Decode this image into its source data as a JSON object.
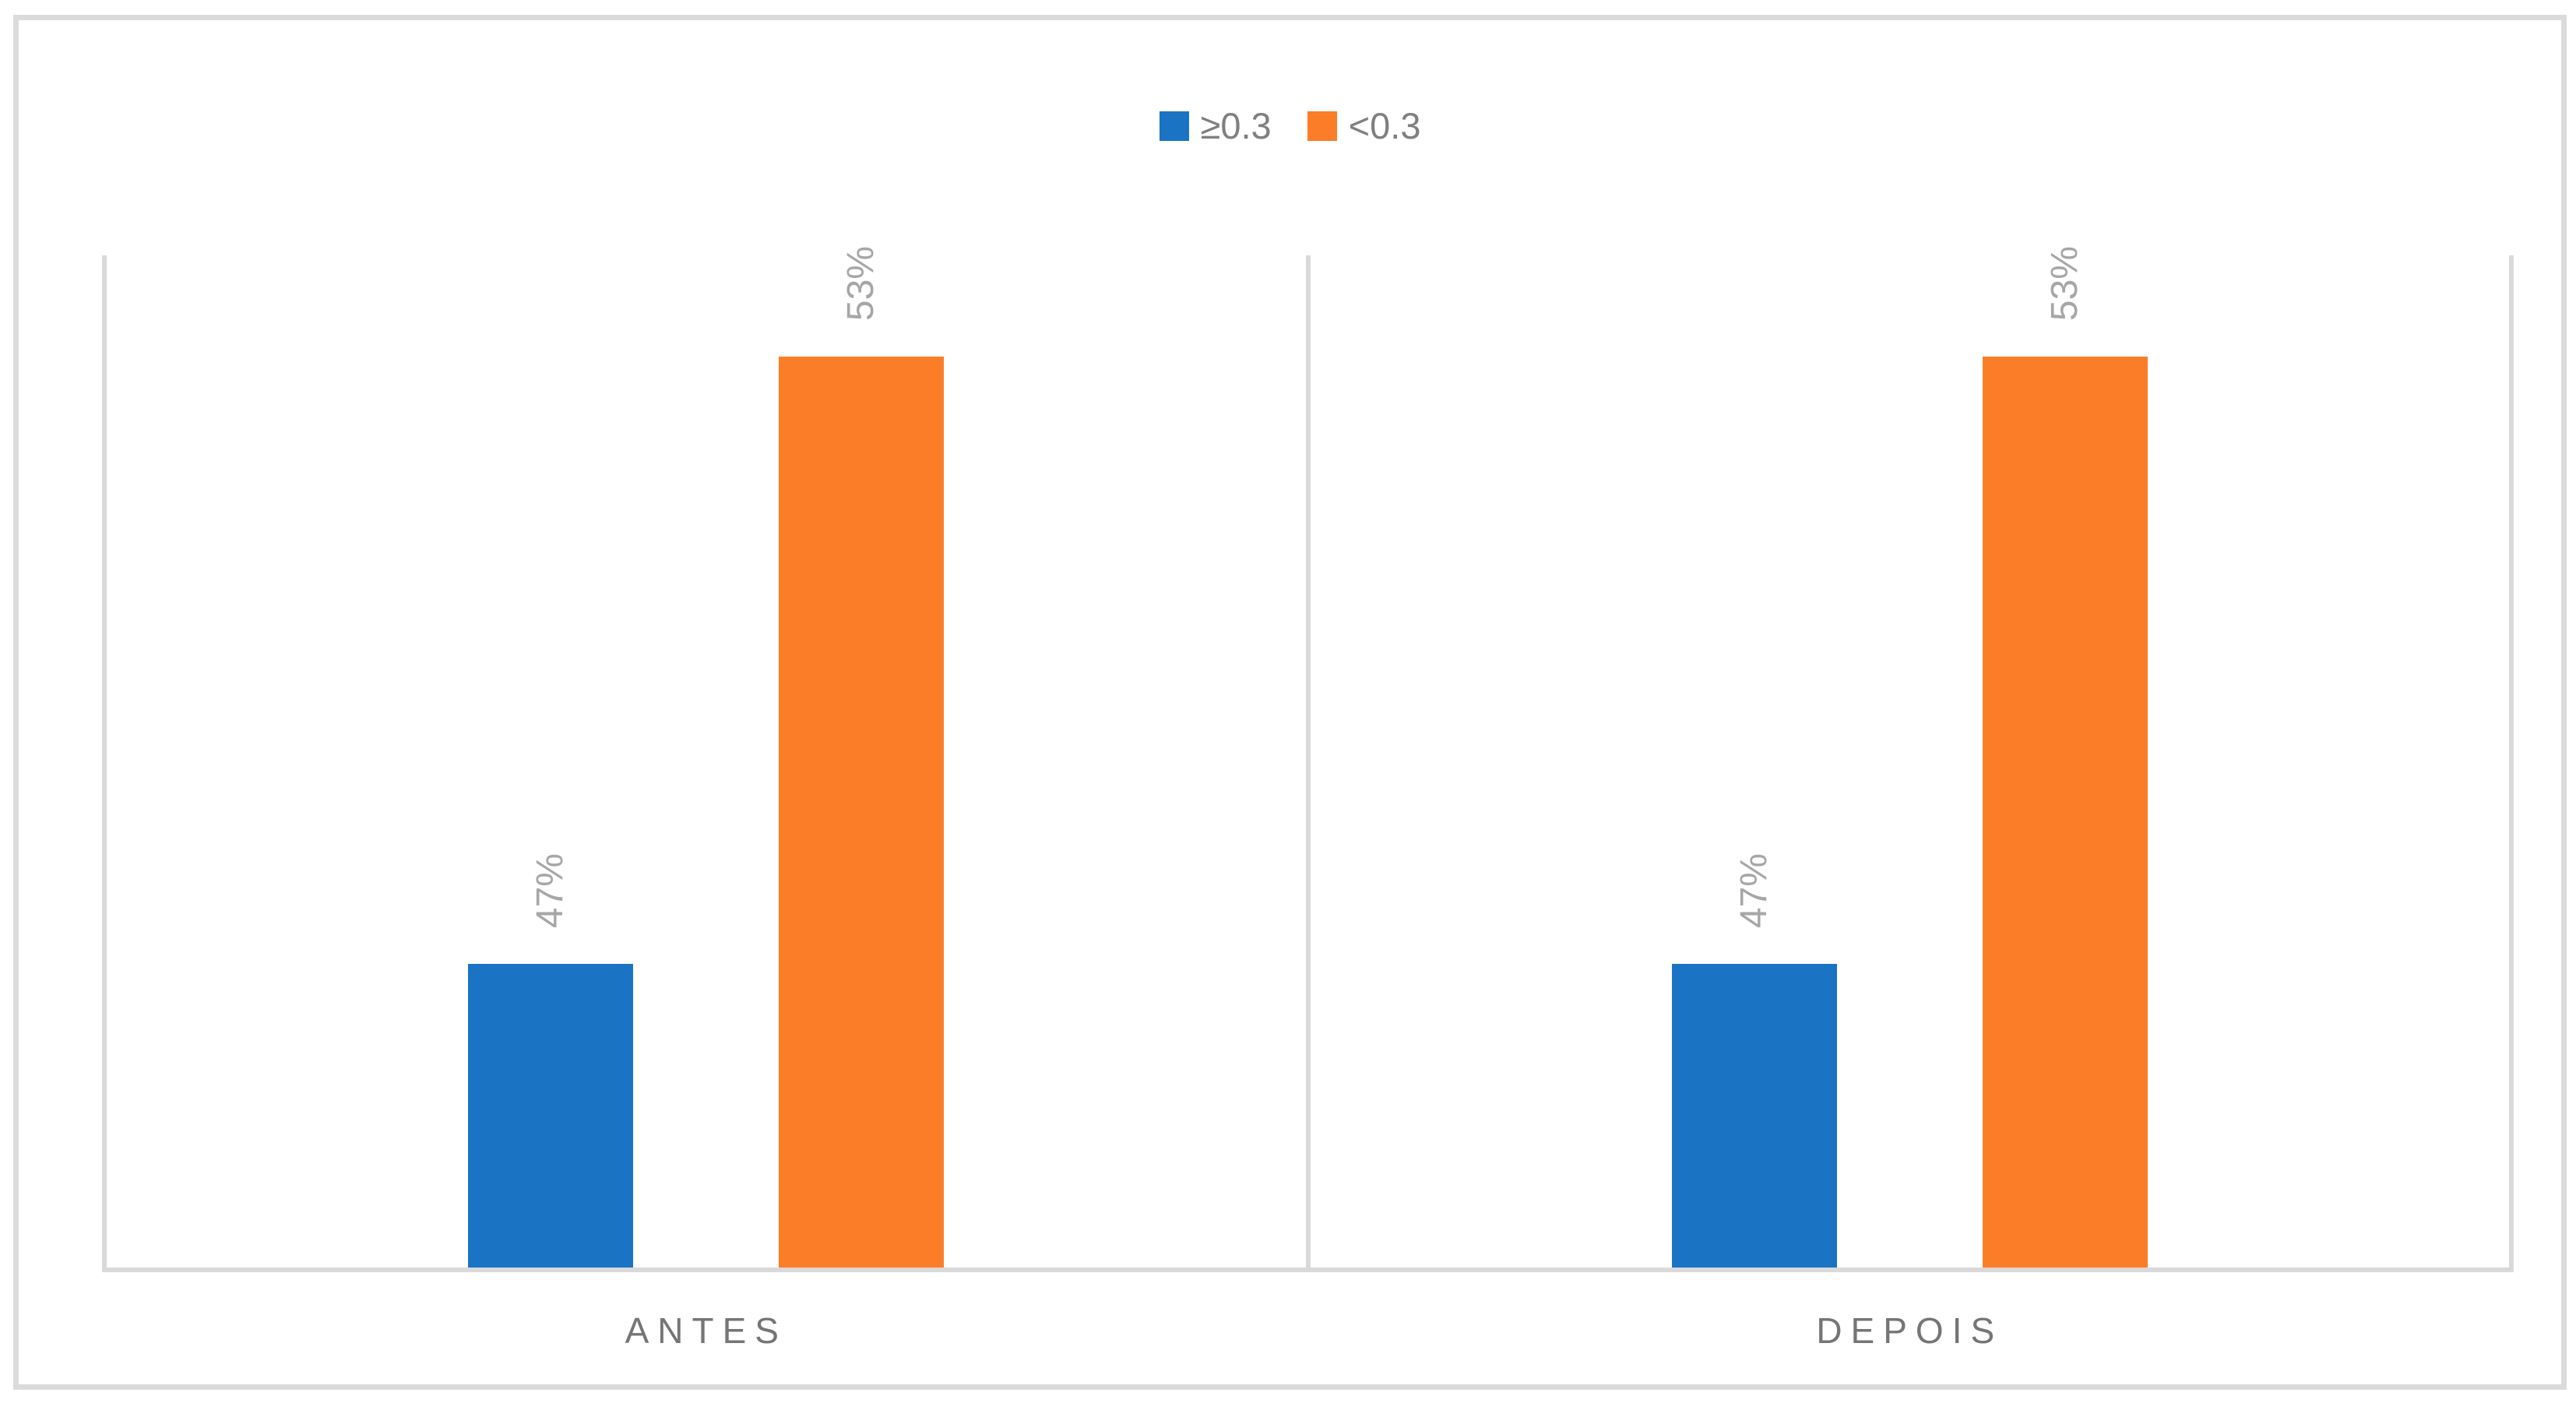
{
  "chart_data": {
    "type": "bar",
    "title": "",
    "xlabel": "",
    "ylabel": "",
    "categories": [
      "ANTES",
      "DEPOIS"
    ],
    "series": [
      {
        "name": "≥0.3",
        "color": "#1B73C4",
        "values": [
          47,
          47
        ],
        "labels": [
          "47%",
          "47%"
        ]
      },
      {
        "name": "<0.3",
        "color": "#FB7D28",
        "values": [
          53,
          53
        ],
        "labels": [
          "53%",
          "53%"
        ]
      }
    ],
    "ylim": [
      44,
      54
    ],
    "y_axis_visible": false,
    "gridlines": "vertical-category-boundaries-only",
    "legend_position": "top-center",
    "data_label_rotation_deg": -90
  },
  "colors": {
    "grid": "#D9D9D9",
    "frame_border": "#DBDBDB",
    "legend_text": "#7F7F7F",
    "data_label_text": "#A6A6A6",
    "category_text": "#757575",
    "background": "#FFFFFF"
  }
}
